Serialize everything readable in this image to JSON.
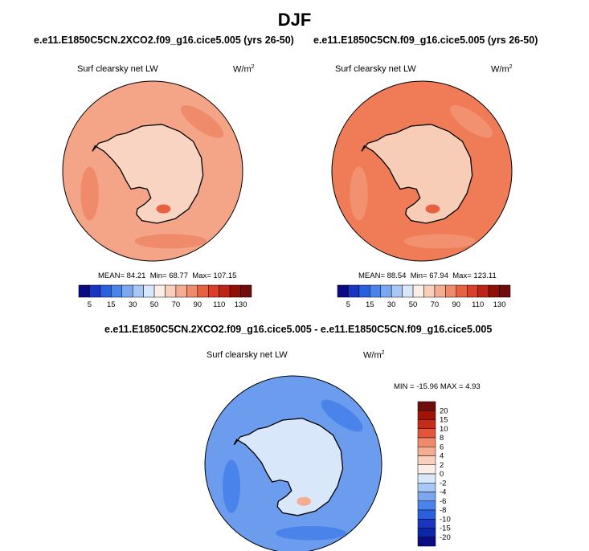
{
  "figure": {
    "title": "DJF"
  },
  "chart_data": [
    {
      "type": "heatmap",
      "projection": "south-polar-stereographic",
      "case_title": "e.e11.E1850C5CN.2XCO2.f09_g16.cice5.005 (yrs 26-50)",
      "variable": "Surf clearsky net LW",
      "units": "W/m",
      "units_exp": "2",
      "stats": {
        "mean_label": "MEAN=",
        "mean": "84.21",
        "min_label": "Min=",
        "min": "68.77",
        "max_label": "Max=",
        "max": "107.15"
      },
      "colorbar": {
        "orientation": "horizontal",
        "levels": [
          5,
          10,
          15,
          20,
          30,
          40,
          50,
          60,
          70,
          80,
          90,
          100,
          110,
          120,
          130
        ],
        "tick_labels": [
          "5",
          "15",
          "30",
          "50",
          "70",
          "90",
          "110",
          "130"
        ]
      }
    },
    {
      "type": "heatmap",
      "projection": "south-polar-stereographic",
      "case_title": "e.e11.E1850C5CN.f09_g16.cice5.005 (yrs 26-50)",
      "variable": "Surf clearsky net LW",
      "units": "W/m",
      "units_exp": "2",
      "stats": {
        "mean_label": "MEAN=",
        "mean": "88.54",
        "min_label": "Min=",
        "min": "67.94",
        "max_label": "Max=",
        "max": "123.11"
      },
      "colorbar": {
        "orientation": "horizontal",
        "levels": [
          5,
          10,
          15,
          20,
          30,
          40,
          50,
          60,
          70,
          80,
          90,
          100,
          110,
          120,
          130
        ],
        "tick_labels": [
          "5",
          "15",
          "30",
          "50",
          "70",
          "90",
          "110",
          "130"
        ]
      }
    },
    {
      "type": "heatmap",
      "projection": "south-polar-stereographic",
      "case_title": "e.e11.E1850C5CN.2XCO2.f09_g16.cice5.005 - e.e11.E1850C5CN.f09_g16.cice5.005",
      "variable": "Surf clearsky net LW",
      "units": "W/m",
      "units_exp": "2",
      "stats_text": "MIN = -15.96 MAX =   4.93",
      "colorbar": {
        "orientation": "vertical",
        "levels": [
          -20,
          -15,
          -10,
          -8,
          -6,
          -4,
          -2,
          0,
          2,
          4,
          6,
          8,
          10,
          15,
          20
        ],
        "tick_labels": [
          "20",
          "15",
          "10",
          "8",
          "6",
          "4",
          "2",
          "0",
          "-2",
          "-4",
          "-6",
          "-8",
          "-10",
          "-15",
          "-20"
        ]
      }
    }
  ],
  "colors": {
    "abs_scale": [
      "#0b0b83",
      "#1a35c2",
      "#2a5fdd",
      "#4a84ea",
      "#7aa7f0",
      "#a9c7f5",
      "#d9e7fa",
      "#fbeee6",
      "#f9d0bd",
      "#f5ad92",
      "#ef8a6b",
      "#e7603f",
      "#d8402b",
      "#bb2417",
      "#911005",
      "#6e0d0c"
    ],
    "diff_scale": [
      "#6e0d0c",
      "#9e1406",
      "#c62a18",
      "#e2553a",
      "#ef8a6b",
      "#f5ad92",
      "#f9d0bd",
      "#fbeee6",
      "#d9e7fa",
      "#a9c7f5",
      "#7aa7f0",
      "#4a84ea",
      "#2a5fdd",
      "#1a35c2",
      "#0b27a6",
      "#0b0b83"
    ],
    "panel1_ocean": "#f4a487",
    "panel1_band": "#ef8a6b",
    "panel1_ice": "#f9d4c2",
    "panel2_ocean": "#ef7c57",
    "panel2_band": "#f29170",
    "panel2_ice": "#f8cdb8",
    "panel3_ocean": "#6c9cee",
    "panel3_band": "#4a84ea",
    "panel3_ice": "#d9e7fa"
  }
}
